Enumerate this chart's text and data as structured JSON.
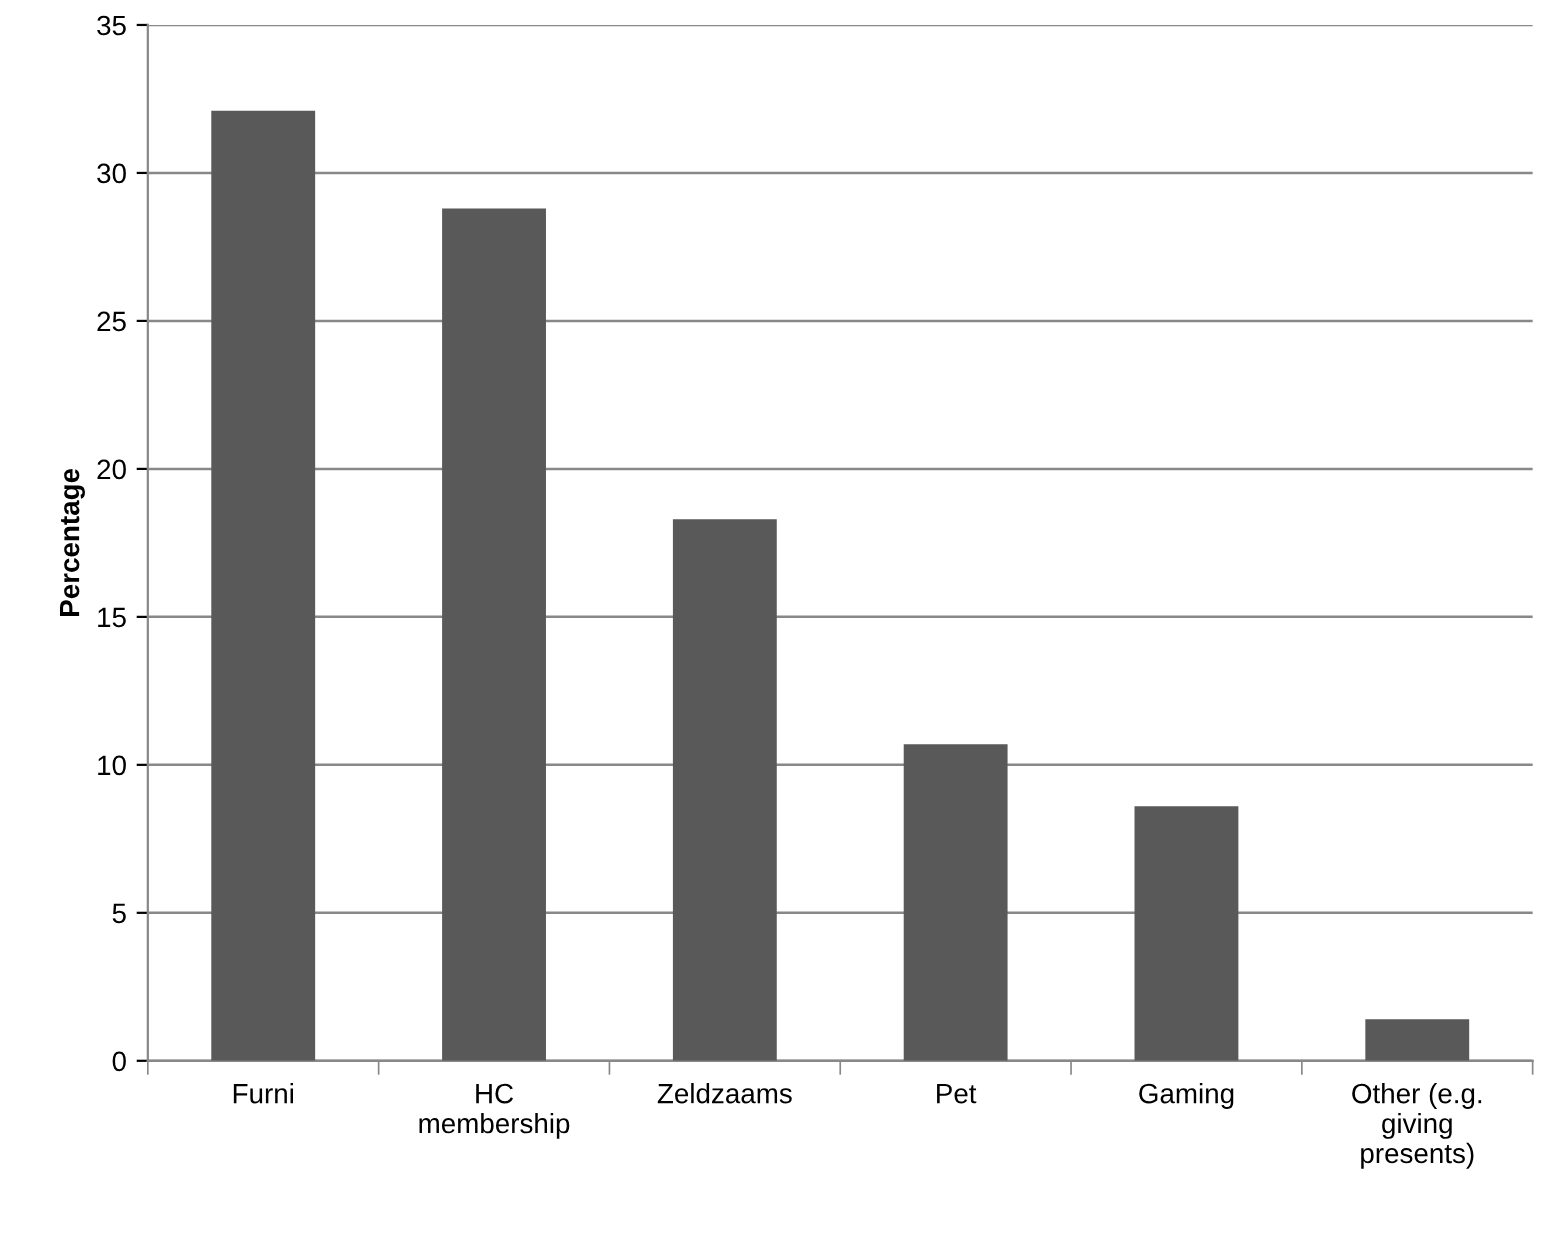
{
  "chart_data": {
    "type": "bar",
    "ylabel": "Percentage",
    "categories": [
      "Furni",
      "HC\nmembership",
      "Zeldzaams",
      "Pet",
      "Gaming",
      "Other (e.g.\ngiving\npresents)"
    ],
    "values": [
      32.1,
      28.8,
      18.3,
      10.7,
      8.6,
      1.4
    ],
    "color": "#595959",
    "ylim": [
      0,
      35
    ],
    "yticks": [
      0,
      5,
      10,
      15,
      20,
      25,
      30,
      35
    ],
    "grid": "y",
    "legend": false
  }
}
